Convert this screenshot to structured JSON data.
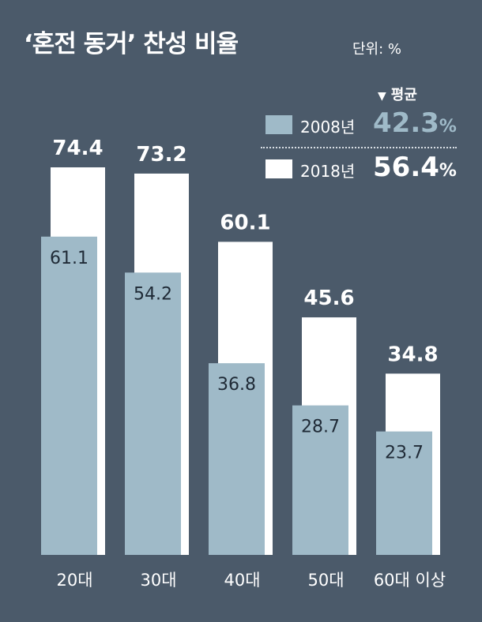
{
  "title": "‘혼전 동거’ 찬성 비율",
  "unit_label": "단위: %",
  "legend": {
    "average_label": "평균",
    "items": [
      {
        "year": "2008년",
        "average": "42.3",
        "pct": "%"
      },
      {
        "year": "2018년",
        "average": "56.4",
        "pct": "%"
      }
    ]
  },
  "colors": {
    "background": "#4b5a6a",
    "series_2008": "#9fbac8",
    "series_2018": "#ffffff",
    "avg_2008_text": "#9fbac8",
    "avg_2018_text": "#ffffff"
  },
  "chart_data": {
    "type": "bar",
    "categories": [
      "20대",
      "30대",
      "40대",
      "50대",
      "60대 이상"
    ],
    "series": [
      {
        "name": "2008년",
        "values": [
          61.1,
          54.2,
          36.8,
          28.7,
          23.7
        ]
      },
      {
        "name": "2018년",
        "values": [
          74.4,
          73.2,
          60.1,
          45.6,
          34.8
        ]
      }
    ],
    "title": "‘혼전 동거’ 찬성 비율",
    "xlabel": "",
    "ylabel": "",
    "ylim": [
      0,
      80
    ],
    "grid": false,
    "legend_position": "top-right"
  }
}
